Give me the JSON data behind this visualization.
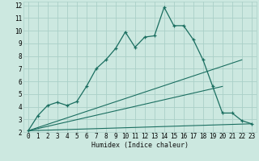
{
  "xlabel": "Humidex (Indice chaleur)",
  "bg_color": "#cce8e0",
  "grid_color": "#aad0c8",
  "line_color": "#1a6e60",
  "plot_bg": "#cce8e0",
  "xlim": [
    -0.5,
    23.5
  ],
  "ylim": [
    2,
    12.3
  ],
  "xticks": [
    0,
    1,
    2,
    3,
    4,
    5,
    6,
    7,
    8,
    9,
    10,
    11,
    12,
    13,
    14,
    15,
    16,
    17,
    18,
    19,
    20,
    21,
    22,
    23
  ],
  "yticks": [
    2,
    3,
    4,
    5,
    6,
    7,
    8,
    9,
    10,
    11,
    12
  ],
  "series1_x": [
    0,
    1,
    2,
    3,
    4,
    5,
    6,
    7,
    8,
    9,
    10,
    11,
    12,
    13,
    14,
    15,
    16,
    17,
    18,
    19,
    20,
    21,
    22,
    23
  ],
  "series1_y": [
    2.1,
    3.3,
    4.1,
    4.35,
    4.1,
    4.4,
    5.6,
    7.0,
    7.7,
    8.6,
    9.9,
    8.7,
    9.5,
    9.6,
    11.85,
    10.4,
    10.4,
    9.3,
    7.7,
    5.6,
    3.5,
    3.5,
    2.9,
    2.65
  ],
  "line2_x0": 0,
  "line2_y0": 2.1,
  "line2_x1": 22,
  "line2_y1": 7.7,
  "line3_x0": 0,
  "line3_y0": 2.1,
  "line3_x1": 20,
  "line3_y1": 5.6,
  "line4_x0": 0,
  "line4_y0": 2.1,
  "line4_x1": 23,
  "line4_y1": 2.65,
  "xlabel_fontsize": 6,
  "tick_fontsize": 5.5
}
